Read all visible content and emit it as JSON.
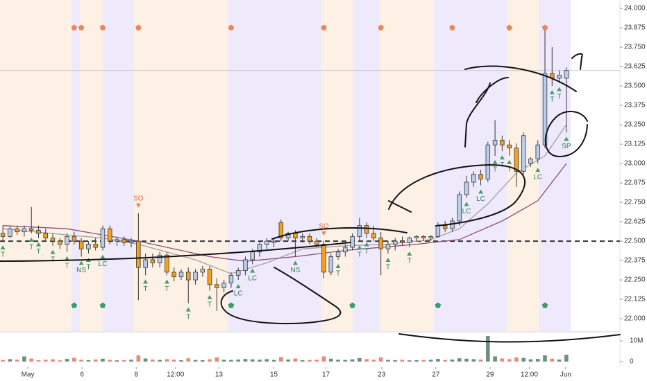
{
  "chart_data": {
    "type": "candlestick",
    "x": [
      0,
      1,
      2,
      3,
      4,
      5,
      6,
      7,
      8,
      9,
      10,
      11,
      12,
      13,
      14,
      15,
      16,
      17,
      18,
      19,
      20,
      21,
      22,
      23,
      24,
      25,
      26,
      27,
      28,
      29,
      30,
      31,
      32,
      33,
      34,
      35,
      36,
      37,
      38,
      39,
      40,
      41,
      42,
      43,
      44,
      45,
      46,
      47,
      48,
      49,
      50,
      51,
      52,
      53,
      54,
      55,
      56,
      57,
      58,
      59,
      60,
      61,
      62,
      63,
      64,
      65,
      66,
      67,
      68,
      69,
      70,
      71,
      72,
      73,
      74,
      75,
      76,
      77,
      78,
      79
    ],
    "ohlc": [
      [
        22.55,
        22.6,
        22.5,
        22.53
      ],
      [
        22.53,
        22.6,
        22.52,
        22.58
      ],
      [
        22.58,
        22.6,
        22.54,
        22.56
      ],
      [
        22.56,
        22.6,
        22.53,
        22.58
      ],
      [
        22.58,
        22.72,
        22.55,
        22.57
      ],
      [
        22.57,
        22.6,
        22.52,
        22.55
      ],
      [
        22.55,
        22.58,
        22.5,
        22.52
      ],
      [
        22.52,
        22.55,
        22.47,
        22.5
      ],
      [
        22.5,
        22.52,
        22.45,
        22.48
      ],
      [
        22.48,
        22.55,
        22.43,
        22.53
      ],
      [
        22.53,
        22.56,
        22.48,
        22.5
      ],
      [
        22.5,
        22.52,
        22.4,
        22.45
      ],
      [
        22.45,
        22.5,
        22.42,
        22.48
      ],
      [
        22.48,
        22.52,
        22.44,
        22.46
      ],
      [
        22.46,
        22.6,
        22.44,
        22.58
      ],
      [
        22.58,
        22.6,
        22.48,
        22.5
      ],
      [
        22.5,
        22.53,
        22.47,
        22.51
      ],
      [
        22.51,
        22.53,
        22.47,
        22.49
      ],
      [
        22.49,
        22.52,
        22.46,
        22.5
      ],
      [
        22.5,
        22.68,
        22.12,
        22.33
      ],
      [
        22.33,
        22.42,
        22.28,
        22.38
      ],
      [
        22.38,
        22.42,
        22.33,
        22.36
      ],
      [
        22.36,
        22.43,
        22.33,
        22.41
      ],
      [
        22.41,
        22.43,
        22.28,
        22.3
      ],
      [
        22.3,
        22.33,
        22.24,
        22.27
      ],
      [
        22.27,
        22.32,
        22.25,
        22.3
      ],
      [
        22.3,
        22.33,
        22.1,
        22.25
      ],
      [
        22.25,
        22.32,
        22.22,
        22.3
      ],
      [
        22.3,
        22.34,
        22.27,
        22.32
      ],
      [
        22.32,
        22.34,
        22.18,
        22.22
      ],
      [
        22.22,
        22.26,
        22.05,
        22.2
      ],
      [
        22.2,
        22.25,
        22.17,
        22.23
      ],
      [
        22.23,
        22.3,
        22.2,
        22.28
      ],
      [
        22.28,
        22.33,
        22.25,
        22.31
      ],
      [
        22.31,
        22.4,
        22.28,
        22.38
      ],
      [
        22.38,
        22.45,
        22.35,
        22.43
      ],
      [
        22.43,
        22.5,
        22.4,
        22.48
      ],
      [
        22.48,
        22.52,
        22.45,
        22.5
      ],
      [
        22.49,
        22.52,
        22.46,
        22.5
      ],
      [
        22.62,
        22.64,
        22.5,
        22.52
      ],
      [
        22.52,
        22.56,
        22.5,
        22.55
      ],
      [
        22.55,
        22.57,
        22.4,
        22.52
      ],
      [
        22.52,
        22.55,
        22.49,
        22.53
      ],
      [
        22.53,
        22.55,
        22.48,
        22.5
      ],
      [
        22.5,
        22.52,
        22.46,
        22.48
      ],
      [
        22.48,
        22.5,
        22.26,
        22.3
      ],
      [
        22.3,
        22.42,
        22.28,
        22.4
      ],
      [
        22.4,
        22.45,
        22.38,
        22.43
      ],
      [
        22.43,
        22.48,
        22.4,
        22.46
      ],
      [
        22.46,
        22.55,
        22.44,
        22.53
      ],
      [
        22.53,
        22.65,
        22.5,
        22.6
      ],
      [
        22.6,
        22.62,
        22.52,
        22.55
      ],
      [
        22.55,
        22.6,
        22.5,
        22.52
      ],
      [
        22.52,
        22.56,
        22.28,
        22.45
      ],
      [
        22.45,
        22.5,
        22.42,
        22.48
      ],
      [
        22.48,
        22.52,
        22.44,
        22.5
      ],
      [
        22.5,
        22.53,
        22.47,
        22.49
      ],
      [
        22.49,
        22.53,
        22.46,
        22.52
      ],
      [
        22.52,
        22.54,
        22.5,
        22.53
      ],
      [
        22.53,
        22.54,
        22.5,
        22.52
      ],
      [
        22.52,
        22.54,
        22.5,
        22.53
      ],
      [
        22.53,
        22.62,
        22.52,
        22.6
      ],
      [
        22.6,
        22.63,
        22.56,
        22.58
      ],
      [
        22.58,
        22.65,
        22.56,
        22.63
      ],
      [
        22.63,
        22.82,
        22.6,
        22.8
      ],
      [
        22.8,
        22.92,
        22.78,
        22.88
      ],
      [
        22.88,
        22.95,
        22.85,
        22.93
      ],
      [
        22.93,
        22.96,
        22.86,
        22.9
      ],
      [
        22.9,
        23.14,
        22.88,
        23.12
      ],
      [
        23.12,
        23.28,
        23.05,
        23.15
      ],
      [
        23.15,
        23.18,
        23.08,
        23.12
      ],
      [
        23.12,
        23.15,
        23.05,
        23.1
      ],
      [
        23.1,
        23.13,
        22.85,
        22.95
      ],
      [
        22.95,
        23.2,
        22.93,
        23.18
      ],
      [
        23.0,
        23.04,
        22.98,
        23.03
      ],
      [
        23.03,
        23.15,
        23.0,
        23.12
      ],
      [
        23.12,
        23.88,
        23.1,
        23.58
      ],
      [
        23.58,
        23.75,
        23.5,
        23.55
      ],
      [
        23.55,
        23.6,
        23.52,
        23.57
      ],
      [
        23.55,
        23.62,
        23.2,
        23.6
      ]
    ],
    "volume": [
      800000,
      1200000,
      900000,
      2500000,
      1500000,
      700000,
      900000,
      1100000,
      600000,
      1300000,
      1800000,
      900000,
      700000,
      1000000,
      1400000,
      800000,
      600000,
      700000,
      900000,
      3000000,
      1500000,
      1000000,
      800000,
      1200000,
      900000,
      700000,
      1600000,
      800000,
      700000,
      1100000,
      2000000,
      900000,
      800000,
      1000000,
      1300000,
      1100000,
      900000,
      1200000,
      800000,
      2200000,
      1000000,
      1500000,
      700000,
      800000,
      900000,
      2500000,
      1400000,
      900000,
      800000,
      1100000,
      1700000,
      1200000,
      900000,
      2000000,
      800000,
      700000,
      900000,
      600000,
      700000,
      800000,
      900000,
      1300000,
      800000,
      1000000,
      1600000,
      1400000,
      1200000,
      1000000,
      12300000,
      2500000,
      1500000,
      1200000,
      2000000,
      1800000,
      1100000,
      1300000,
      3000000,
      1400000,
      1000000,
      3300000
    ],
    "up_color": "#b9cdea",
    "down_color": "#f5a11c",
    "volume_up_color": "#6f8f80",
    "volume_down_color": "#e98b78",
    "xlim": [
      -0.4,
      79.6
    ],
    "xticks": [
      {
        "value": 3.5,
        "label": "May"
      },
      {
        "value": 11.1,
        "label": "6"
      },
      {
        "value": 18.7,
        "label": "8"
      },
      {
        "value": 24.2,
        "label": "12:00"
      },
      {
        "value": 30.3,
        "label": "13"
      },
      {
        "value": 38,
        "label": "15"
      },
      {
        "value": 45.3,
        "label": "17"
      },
      {
        "value": 53.1,
        "label": "23"
      },
      {
        "value": 60.7,
        "label": "27"
      },
      {
        "value": 68.3,
        "label": "29"
      },
      {
        "value": 73.8,
        "label": "12:00"
      },
      {
        "value": 78.9,
        "label": "Jun"
      }
    ],
    "ylim": [
      21.92,
      24.054
    ],
    "yticks": [
      {
        "value": 22,
        "label": "22.000"
      },
      {
        "value": 22.125,
        "label": "22.125"
      },
      {
        "value": 22.25,
        "label": "22.250"
      },
      {
        "value": 22.375,
        "label": "22.375"
      },
      {
        "value": 22.5,
        "label": "22.500"
      },
      {
        "value": 22.625,
        "label": "22.625"
      },
      {
        "value": 22.75,
        "label": "22.750"
      },
      {
        "value": 22.875,
        "label": "22.875"
      },
      {
        "value": 23,
        "label": "23.000"
      },
      {
        "value": 23.125,
        "label": "23.125"
      },
      {
        "value": 23.25,
        "label": "23.250"
      },
      {
        "value": 23.375,
        "label": "23.375"
      },
      {
        "value": 23.5,
        "label": "23.500"
      },
      {
        "value": 23.625,
        "label": "23.625"
      },
      {
        "value": 23.75,
        "label": "23.750"
      },
      {
        "value": 23.875,
        "label": "23.875"
      },
      {
        "value": 24,
        "label": "24.000"
      }
    ],
    "vlim": [
      -2670000,
      14000000
    ],
    "vticks": [
      {
        "value": 0,
        "label": "0"
      },
      {
        "value": 10000000,
        "label": "10M"
      }
    ],
    "ma": [
      {
        "color": "#a0a0a0",
        "x": [
          0,
          9,
          14,
          19,
          27,
          32,
          37,
          42,
          48,
          54,
          60,
          64,
          68,
          72,
          76,
          79
        ],
        "values": [
          22.58,
          22.54,
          22.52,
          22.48,
          22.38,
          22.29,
          22.36,
          22.45,
          22.47,
          22.48,
          22.51,
          22.58,
          22.74,
          22.94,
          23.05,
          23.25
        ]
      },
      {
        "color": "#8e4a78",
        "x": [
          0,
          9,
          19,
          29,
          34,
          41,
          48,
          58,
          64,
          70,
          75,
          79
        ],
        "values": [
          22.6,
          22.58,
          22.5,
          22.4,
          22.37,
          22.4,
          22.44,
          22.48,
          22.51,
          22.63,
          22.76,
          23.0
        ]
      }
    ],
    "levels": [
      {
        "value": 22.5,
        "color": "#333333",
        "dashed": true
      },
      {
        "value": 23.6,
        "color": "#c8c8c8",
        "dashed": false
      }
    ],
    "markers_top": [
      10,
      11,
      14,
      19,
      32,
      45,
      53,
      63,
      71,
      76
    ],
    "markers_top_color": "#e8875a",
    "markers_bottom": [
      10,
      14,
      32,
      49,
      61,
      76
    ],
    "markers_bottom_color": "#3f9a6a",
    "annotations": [
      {
        "i": 0,
        "label": "T",
        "side": "below"
      },
      {
        "i": 4,
        "label": "T",
        "side": "below"
      },
      {
        "i": 5,
        "label": "T",
        "side": "below"
      },
      {
        "i": 7,
        "label": "T",
        "side": "below"
      },
      {
        "i": 9,
        "label": "T",
        "side": "below"
      },
      {
        "i": 11,
        "label": "NS",
        "side": "below"
      },
      {
        "i": 12,
        "label": "T",
        "side": "below"
      },
      {
        "i": 14,
        "label": "LC",
        "side": "below"
      },
      {
        "i": 19,
        "label": "SO",
        "side": "above"
      },
      {
        "i": 20,
        "label": "T",
        "side": "below"
      },
      {
        "i": 23,
        "label": "T",
        "side": "below"
      },
      {
        "i": 26,
        "label": "T",
        "side": "below"
      },
      {
        "i": 29,
        "label": "T",
        "side": "below"
      },
      {
        "i": 33,
        "label": "LC",
        "side": "below"
      },
      {
        "i": 35,
        "label": "LC",
        "side": "below"
      },
      {
        "i": 41,
        "label": "NS",
        "side": "below"
      },
      {
        "i": 45,
        "label": "SO",
        "side": "above"
      },
      {
        "i": 47,
        "label": "T",
        "side": "below"
      },
      {
        "i": 50,
        "label": "T",
        "side": "below"
      },
      {
        "i": 51,
        "label": "T",
        "side": "below"
      },
      {
        "i": 54,
        "label": "T",
        "side": "below"
      },
      {
        "i": 57,
        "label": "T",
        "side": "below"
      },
      {
        "i": 65,
        "label": "LC",
        "side": "below"
      },
      {
        "i": 67,
        "label": "LC",
        "side": "below"
      },
      {
        "i": 69,
        "label": "T",
        "side": "below"
      },
      {
        "i": 70,
        "label": "T",
        "side": "below"
      },
      {
        "i": 71,
        "label": "T",
        "side": "below"
      },
      {
        "i": 75,
        "label": "LC",
        "side": "below"
      },
      {
        "i": 77,
        "label": "T",
        "side": "below"
      },
      {
        "i": 78,
        "label": "T",
        "side": "below"
      },
      {
        "i": 79,
        "label": "SP",
        "side": "below"
      }
    ]
  }
}
